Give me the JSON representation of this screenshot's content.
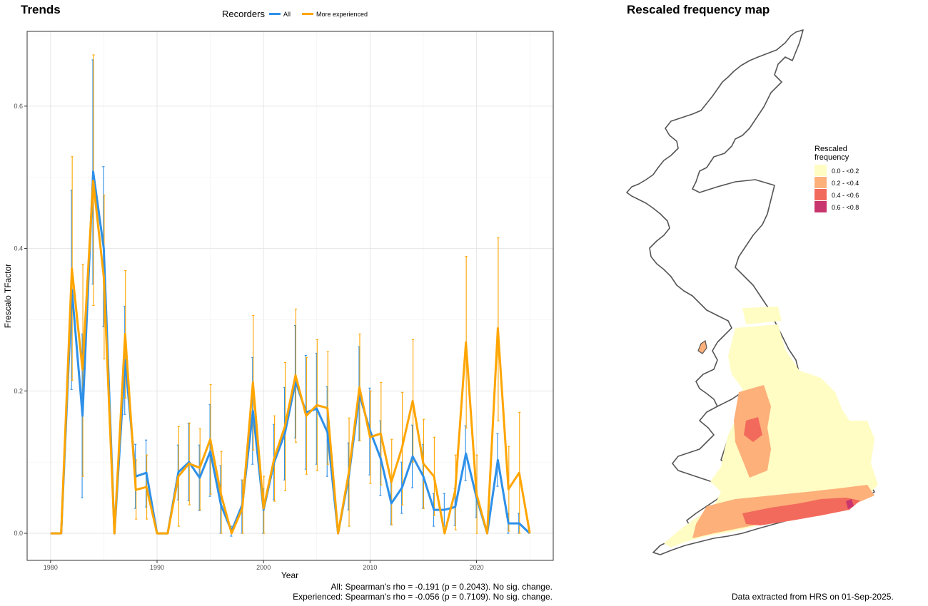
{
  "left_title": "Trends",
  "right_title": "Rescaled frequency map",
  "legend": {
    "title": "Recorders",
    "items": [
      {
        "label": "All",
        "color": "#2E90E8"
      },
      {
        "label": "More experienced",
        "color": "#FFA500"
      }
    ]
  },
  "footnotes": {
    "all": "All: Spearman's rho = -0.191 (p = 0.2043). No sig. change.",
    "experienced": "Experienced: Spearman's rho = -0.056 (p = 0.7109). No sig. change.",
    "extracted": "Data extracted from HRS on 01-Sep-2025."
  },
  "map_legend": {
    "title_line1": "Rescaled",
    "title_line2": "frequency",
    "items": [
      {
        "label": "0.0 - <0.2",
        "color": "#FFFDC4"
      },
      {
        "label": "0.2 - <0.4",
        "color": "#FDB07A"
      },
      {
        "label": "0.4 - <0.6",
        "color": "#F26A5C"
      },
      {
        "label": "0.6 - <0.8",
        "color": "#C9356E"
      }
    ]
  },
  "chart_data": {
    "type": "line",
    "xlabel": "Year",
    "ylabel": "Frescalo TFactor",
    "xlim": [
      1977.8,
      2027.2
    ],
    "ylim": [
      -0.038,
      0.705
    ],
    "xticks": [
      1980,
      1990,
      2000,
      2010,
      2020
    ],
    "yticks": [
      0.0,
      0.2,
      0.4,
      0.6
    ],
    "ytick_labels": [
      "0.0",
      "0.2",
      "0.4",
      "0.6"
    ],
    "grid": true,
    "legend_position": "top",
    "series": [
      {
        "name": "All",
        "color": "#2E90E8",
        "points": [
          [
            1980,
            0,
            0,
            0
          ],
          [
            1981,
            0,
            0,
            0
          ],
          [
            1982,
            0.342,
            0.202,
            0.482
          ],
          [
            1983,
            0.165,
            0.05,
            0.28
          ],
          [
            1984,
            0.508,
            0.35,
            0.665
          ],
          [
            1985,
            0.4,
            0.29,
            0.515
          ],
          [
            1986,
            0,
            0,
            0
          ],
          [
            1987,
            0.243,
            0.167,
            0.319
          ],
          [
            1988,
            0.08,
            0.035,
            0.125
          ],
          [
            1989,
            0.085,
            0.037,
            0.131
          ],
          [
            1990,
            0,
            0,
            0
          ],
          [
            1991,
            0,
            0,
            0
          ],
          [
            1992,
            0.086,
            0.047,
            0.124
          ],
          [
            1993,
            0.1,
            0.046,
            0.154
          ],
          [
            1994,
            0.078,
            0.032,
            0.124
          ],
          [
            1995,
            0.115,
            0.052,
            0.181
          ],
          [
            1996,
            0.04,
            0.0,
            0.095
          ],
          [
            1997,
            0.003,
            -0.004,
            0.01
          ],
          [
            1998,
            0.04,
            0.0,
            0.075
          ],
          [
            1999,
            0.172,
            0.097,
            0.247
          ],
          [
            2000,
            0.033,
            0.0,
            0.063
          ],
          [
            2001,
            0.1,
            0.047,
            0.153
          ],
          [
            2002,
            0.14,
            0.075,
            0.205
          ],
          [
            2003,
            0.213,
            0.134,
            0.292
          ],
          [
            2004,
            0.17,
            0.09,
            0.25
          ],
          [
            2005,
            0.175,
            0.097,
            0.253
          ],
          [
            2006,
            0.142,
            0.08,
            0.206
          ],
          [
            2007,
            0,
            0,
            0
          ],
          [
            2008,
            0.08,
            0.033,
            0.127
          ],
          [
            2009,
            0.195,
            0.13,
            0.262
          ],
          [
            2010,
            0.144,
            0.082,
            0.204
          ],
          [
            2011,
            0.105,
            0.053,
            0.158
          ],
          [
            2012,
            0.042,
            0.012,
            0.072
          ],
          [
            2013,
            0.064,
            0.028,
            0.1
          ],
          [
            2014,
            0.108,
            0.064,
            0.152
          ],
          [
            2015,
            0.08,
            0.035,
            0.125
          ],
          [
            2016,
            0.033,
            0.01,
            0.056
          ],
          [
            2017,
            0.033,
            0.01,
            0.056
          ],
          [
            2018,
            0.037,
            0.011,
            0.063
          ],
          [
            2019,
            0.112,
            0.074,
            0.151
          ],
          [
            2020,
            0.05,
            0.022,
            0.078
          ],
          [
            2021,
            0,
            0,
            0
          ],
          [
            2022,
            0.103,
            0.066,
            0.14
          ],
          [
            2023,
            0.014,
            0.0,
            0.028
          ],
          [
            2024,
            0.014,
            0.0,
            0.028
          ],
          [
            2025,
            0,
            0,
            0
          ]
        ]
      },
      {
        "name": "More experienced",
        "color": "#FFA500",
        "points": [
          [
            1980,
            0,
            0,
            0
          ],
          [
            1981,
            0,
            0,
            0
          ],
          [
            1982,
            0.372,
            0.215,
            0.529
          ],
          [
            1983,
            0.23,
            0.08,
            0.378
          ],
          [
            1984,
            0.495,
            0.32,
            0.672
          ],
          [
            1985,
            0.36,
            0.245,
            0.475
          ],
          [
            1986,
            0,
            0,
            0
          ],
          [
            1987,
            0.28,
            0.19,
            0.369
          ],
          [
            1988,
            0.061,
            0.02,
            0.103
          ],
          [
            1989,
            0.065,
            0.02,
            0.11
          ],
          [
            1990,
            0,
            0,
            0
          ],
          [
            1991,
            0,
            0,
            0
          ],
          [
            1992,
            0.08,
            0.01,
            0.15
          ],
          [
            1993,
            0.098,
            0.04,
            0.155
          ],
          [
            1994,
            0.092,
            0.033,
            0.147
          ],
          [
            1995,
            0.132,
            0.055,
            0.209
          ],
          [
            1996,
            0.055,
            0.0,
            0.115
          ],
          [
            1997,
            0,
            0,
            0
          ],
          [
            1998,
            0.035,
            0.0,
            0.075
          ],
          [
            1999,
            0.212,
            0.117,
            0.306
          ],
          [
            2000,
            0.035,
            0.0,
            0.08
          ],
          [
            2001,
            0.105,
            0.045,
            0.165
          ],
          [
            2002,
            0.15,
            0.06,
            0.24
          ],
          [
            2003,
            0.222,
            0.128,
            0.315
          ],
          [
            2004,
            0.165,
            0.083,
            0.247
          ],
          [
            2005,
            0.18,
            0.088,
            0.272
          ],
          [
            2006,
            0.176,
            0.097,
            0.255
          ],
          [
            2007,
            0,
            0,
            0
          ],
          [
            2008,
            0.085,
            0.01,
            0.162
          ],
          [
            2009,
            0.205,
            0.13,
            0.28
          ],
          [
            2010,
            0.135,
            0.07,
            0.2
          ],
          [
            2011,
            0.14,
            0.068,
            0.212
          ],
          [
            2012,
            0.072,
            0.012,
            0.132
          ],
          [
            2013,
            0.12,
            0.04,
            0.198
          ],
          [
            2014,
            0.186,
            0.1,
            0.272
          ],
          [
            2015,
            0.098,
            0.035,
            0.16
          ],
          [
            2016,
            0.08,
            0.025,
            0.135
          ],
          [
            2017,
            0,
            0,
            0
          ],
          [
            2018,
            0.06,
            0.005,
            0.11
          ],
          [
            2019,
            0.268,
            0.148,
            0.389
          ],
          [
            2020,
            0.055,
            0.0,
            0.11
          ],
          [
            2021,
            0,
            0,
            0
          ],
          [
            2022,
            0.288,
            0.158,
            0.415
          ],
          [
            2023,
            0.062,
            0.003,
            0.122
          ],
          [
            2024,
            0.085,
            0.0,
            0.17
          ],
          [
            2025,
            0,
            0,
            0
          ]
        ]
      }
    ]
  }
}
